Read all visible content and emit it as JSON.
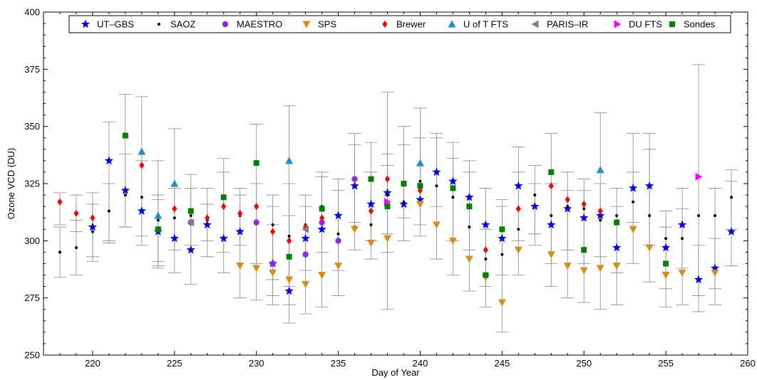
{
  "chart_data": {
    "type": "scatter",
    "xlabel": "Day of Year",
    "ylabel": "Ozone VCD (DU)",
    "xlim": [
      217,
      260
    ],
    "ylim": [
      250,
      400
    ],
    "xticks": [
      220,
      225,
      230,
      235,
      240,
      245,
      250,
      255,
      260
    ],
    "yticks": [
      250,
      275,
      300,
      325,
      350,
      375,
      400
    ],
    "grid": false,
    "legend": "top",
    "series": [
      {
        "name": "UT–GBS",
        "marker": "star",
        "color": "#0000ff",
        "points": [
          [
            220,
            306
          ],
          [
            221,
            335
          ],
          [
            222,
            322
          ],
          [
            223,
            313
          ],
          [
            224,
            304
          ],
          [
            225,
            301
          ],
          [
            226,
            296
          ],
          [
            227,
            307
          ],
          [
            228,
            301
          ],
          [
            229,
            304
          ],
          [
            231,
            290
          ],
          [
            232,
            278
          ],
          [
            233,
            301
          ],
          [
            234,
            305
          ],
          [
            235,
            311
          ],
          [
            236,
            324
          ],
          [
            237,
            316
          ],
          [
            238,
            321
          ],
          [
            239,
            316
          ],
          [
            240,
            318
          ],
          [
            241,
            330
          ],
          [
            242,
            326
          ],
          [
            243,
            319
          ],
          [
            244,
            307
          ],
          [
            245,
            301
          ],
          [
            246,
            324
          ],
          [
            247,
            315
          ],
          [
            248,
            307
          ],
          [
            249,
            314
          ],
          [
            250,
            310
          ],
          [
            251,
            311
          ],
          [
            252,
            297
          ],
          [
            253,
            323
          ],
          [
            254,
            324
          ],
          [
            255,
            297
          ],
          [
            256,
            307
          ],
          [
            257,
            283
          ],
          [
            258,
            288
          ],
          [
            259,
            304
          ]
        ]
      },
      {
        "name": "SAOZ",
        "marker": "dot",
        "color": "#000000",
        "points": [
          [
            218,
            295
          ],
          [
            219,
            297
          ],
          [
            220,
            304
          ],
          [
            221,
            313
          ],
          [
            222,
            320
          ],
          [
            223,
            319
          ],
          [
            224,
            309
          ],
          [
            225,
            310
          ],
          [
            226,
            311
          ],
          [
            227,
            309
          ],
          [
            228,
            315
          ],
          [
            229,
            311
          ],
          [
            231,
            307
          ],
          [
            232,
            302
          ],
          [
            233,
            307
          ],
          [
            234,
            315
          ],
          [
            235,
            303
          ],
          [
            236,
            306
          ],
          [
            237,
            307
          ],
          [
            238,
            320
          ],
          [
            239,
            317
          ],
          [
            240,
            326
          ],
          [
            241,
            324
          ],
          [
            242,
            319
          ],
          [
            243,
            306
          ],
          [
            244,
            292
          ],
          [
            245,
            294
          ],
          [
            246,
            305
          ],
          [
            247,
            320
          ],
          [
            248,
            311
          ],
          [
            249,
            315
          ],
          [
            250,
            314
          ],
          [
            251,
            309
          ],
          [
            252,
            311
          ],
          [
            253,
            317
          ],
          [
            254,
            311
          ],
          [
            255,
            301
          ],
          [
            256,
            301
          ],
          [
            257,
            311
          ],
          [
            258,
            311
          ],
          [
            259,
            319
          ]
        ]
      },
      {
        "name": "MAESTRO",
        "marker": "circle",
        "color": "#8b2be2",
        "points": [
          [
            226,
            308
          ],
          [
            230,
            308
          ],
          [
            231,
            290
          ],
          [
            233,
            294
          ],
          [
            234,
            308
          ],
          [
            235,
            300
          ],
          [
            236,
            327
          ]
        ]
      },
      {
        "name": "SPS",
        "marker": "triangle-down",
        "color": "#d98c1a",
        "points": [
          [
            229,
            289
          ],
          [
            230,
            288
          ],
          [
            231,
            286
          ],
          [
            232,
            283
          ],
          [
            233,
            281
          ],
          [
            234,
            285
          ],
          [
            235,
            289
          ],
          [
            236,
            305
          ],
          [
            237,
            299
          ],
          [
            238,
            301
          ],
          [
            240,
            316
          ],
          [
            241,
            307
          ],
          [
            242,
            300
          ],
          [
            243,
            292
          ],
          [
            244,
            284
          ],
          [
            245,
            273
          ],
          [
            246,
            296
          ],
          [
            248,
            294
          ],
          [
            249,
            289
          ],
          [
            250,
            287
          ],
          [
            251,
            288
          ],
          [
            252,
            289
          ],
          [
            253,
            305
          ],
          [
            254,
            297
          ],
          [
            255,
            285
          ],
          [
            256,
            286
          ],
          [
            258,
            286
          ]
        ]
      },
      {
        "name": "Brewer",
        "marker": "diamond",
        "color": "#ff0000",
        "points": [
          [
            218,
            317
          ],
          [
            219,
            312
          ],
          [
            220,
            310
          ],
          [
            223,
            333
          ],
          [
            225,
            314
          ],
          [
            227,
            310
          ],
          [
            228,
            315
          ],
          [
            229,
            312
          ],
          [
            230,
            315
          ],
          [
            231,
            304
          ],
          [
            232,
            300
          ],
          [
            233,
            306
          ],
          [
            234,
            310
          ],
          [
            237,
            313
          ],
          [
            238,
            327
          ],
          [
            240,
            322
          ],
          [
            244,
            296
          ],
          [
            246,
            314
          ],
          [
            248,
            324
          ],
          [
            249,
            318
          ],
          [
            250,
            316
          ],
          [
            251,
            313
          ]
        ]
      },
      {
        "name": "U of T FTS",
        "marker": "triangle-up",
        "color": "#1e90d0",
        "points": [
          [
            223,
            339
          ],
          [
            224,
            311
          ],
          [
            225,
            325
          ],
          [
            232,
            335
          ],
          [
            240,
            334
          ],
          [
            251,
            331
          ]
        ]
      },
      {
        "name": "PARIS–IR",
        "marker": "triangle-left",
        "color": "#808080",
        "points": [
          [
            226,
            308
          ],
          [
            233,
            305
          ]
        ]
      },
      {
        "name": "DU FTS",
        "marker": "triangle-right",
        "color": "#ff00ff",
        "points": [
          [
            238,
            317
          ],
          [
            257,
            328
          ]
        ]
      },
      {
        "name": "Sondes",
        "marker": "square",
        "color": "#008000",
        "points": [
          [
            222,
            346
          ],
          [
            224,
            305
          ],
          [
            226,
            313
          ],
          [
            228,
            319
          ],
          [
            230,
            334
          ],
          [
            232,
            293
          ],
          [
            234,
            314
          ],
          [
            237,
            327
          ],
          [
            238,
            315
          ],
          [
            239,
            325
          ],
          [
            240,
            324
          ],
          [
            242,
            323
          ],
          [
            243,
            315
          ],
          [
            244,
            285
          ],
          [
            245,
            305
          ],
          [
            248,
            330
          ],
          [
            250,
            296
          ],
          [
            252,
            308
          ],
          [
            255,
            290
          ]
        ]
      }
    ],
    "errorbars": [
      [
        218,
        284,
        306
      ],
      [
        218,
        307,
        321
      ],
      [
        219,
        285,
        309
      ],
      [
        219,
        304,
        320
      ],
      [
        220,
        291,
        321
      ],
      [
        220,
        293,
        316
      ],
      [
        221,
        300,
        352
      ],
      [
        221,
        299,
        325
      ],
      [
        222,
        306,
        364
      ],
      [
        222,
        306,
        338
      ],
      [
        223,
        298,
        363
      ],
      [
        223,
        302,
        335
      ],
      [
        224,
        288,
        335
      ],
      [
        224,
        289,
        320
      ],
      [
        224,
        291,
        318
      ],
      [
        225,
        286,
        349
      ],
      [
        225,
        296,
        323
      ],
      [
        226,
        281,
        329
      ],
      [
        226,
        298,
        323
      ],
      [
        227,
        293,
        323
      ],
      [
        227,
        300,
        316
      ],
      [
        228,
        286,
        336
      ],
      [
        228,
        295,
        330
      ],
      [
        229,
        275,
        323
      ],
      [
        229,
        298,
        320
      ],
      [
        230,
        274,
        351
      ],
      [
        230,
        290,
        325
      ],
      [
        231,
        272,
        320
      ],
      [
        231,
        276,
        307
      ],
      [
        231,
        283,
        315
      ],
      [
        232,
        264,
        359
      ],
      [
        232,
        272,
        311
      ],
      [
        232,
        280,
        325
      ],
      [
        233,
        268,
        320
      ],
      [
        233,
        287,
        315
      ],
      [
        234,
        271,
        330
      ],
      [
        234,
        295,
        328
      ],
      [
        235,
        276,
        327
      ],
      [
        235,
        287,
        322
      ],
      [
        236,
        296,
        347
      ],
      [
        236,
        308,
        342
      ],
      [
        237,
        292,
        343
      ],
      [
        237,
        300,
        330
      ],
      [
        238,
        270,
        365
      ],
      [
        238,
        295,
        333
      ],
      [
        238,
        303,
        338
      ],
      [
        239,
        300,
        350
      ],
      [
        239,
        310,
        342
      ],
      [
        240,
        302,
        358
      ],
      [
        240,
        307,
        345
      ],
      [
        241,
        292,
        347
      ],
      [
        241,
        315,
        345
      ],
      [
        242,
        285,
        343
      ],
      [
        242,
        300,
        336
      ],
      [
        243,
        278,
        335
      ],
      [
        243,
        296,
        330
      ],
      [
        244,
        271,
        323
      ],
      [
        244,
        280,
        305
      ],
      [
        245,
        260,
        315
      ],
      [
        245,
        285,
        318
      ],
      [
        246,
        285,
        341
      ],
      [
        246,
        300,
        330
      ],
      [
        247,
        298,
        333
      ],
      [
        247,
        303,
        325
      ],
      [
        248,
        280,
        347
      ],
      [
        248,
        290,
        325
      ],
      [
        249,
        275,
        330
      ],
      [
        249,
        296,
        322
      ],
      [
        250,
        273,
        327
      ],
      [
        250,
        290,
        322
      ],
      [
        251,
        270,
        356
      ],
      [
        251,
        293,
        325
      ],
      [
        252,
        272,
        323
      ],
      [
        252,
        286,
        315
      ],
      [
        253,
        290,
        347
      ],
      [
        253,
        308,
        330
      ],
      [
        254,
        282,
        347
      ],
      [
        254,
        298,
        340
      ],
      [
        255,
        271,
        313
      ],
      [
        255,
        279,
        306
      ],
      [
        256,
        272,
        323
      ],
      [
        256,
        288,
        314
      ],
      [
        257,
        269,
        377
      ],
      [
        257,
        276,
        298
      ],
      [
        258,
        272,
        323
      ],
      [
        258,
        279,
        301
      ],
      [
        259,
        289,
        331
      ],
      [
        259,
        305,
        326
      ]
    ]
  }
}
